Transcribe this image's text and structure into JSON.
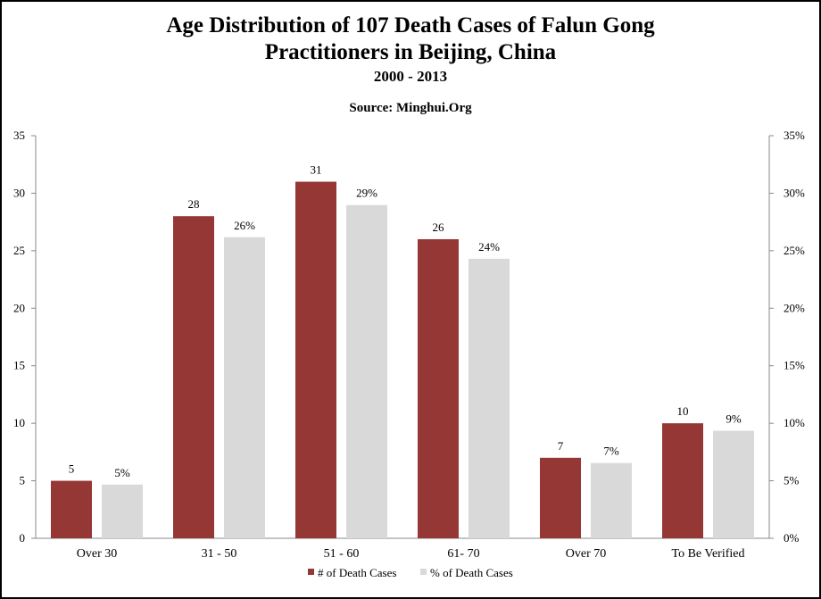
{
  "chart_data": {
    "type": "bar",
    "title": "Age Distribution of 107 Death Cases of Falun Gong Practitioners in Beijing, China",
    "title_lines": [
      "Age Distribution of 107 Death Cases of Falun Gong",
      "Practitioners in Beijing, China"
    ],
    "subtitle": "2000 - 2013",
    "source": "Source: Minghui.Org",
    "categories": [
      "Over 30",
      "31 - 50",
      "51 - 60",
      "61- 70",
      "Over 70",
      "To Be Verified"
    ],
    "series": [
      {
        "name": "# of Death Cases",
        "axis": "left",
        "color": "#953735",
        "values": [
          5,
          28,
          31,
          26,
          7,
          10
        ],
        "labels": [
          "5",
          "28",
          "31",
          "26",
          "7",
          "10"
        ]
      },
      {
        "name": "% of Death Cases",
        "axis": "right",
        "color": "#d9d9d9",
        "values": [
          4.67,
          26.17,
          28.97,
          24.3,
          6.54,
          9.35
        ],
        "labels": [
          "5%",
          "26%",
          "29%",
          "24%",
          "7%",
          "9%"
        ]
      }
    ],
    "y_left": {
      "ylim": [
        0,
        35
      ],
      "ticks": [
        "0",
        "5",
        "10",
        "15",
        "20",
        "25",
        "30",
        "35"
      ]
    },
    "y_right": {
      "ylim": [
        0,
        35
      ],
      "ticks": [
        "0%",
        "5%",
        "10%",
        "15%",
        "20%",
        "25%",
        "30%",
        "35%"
      ]
    },
    "grid": false,
    "legend_position": "bottom"
  }
}
